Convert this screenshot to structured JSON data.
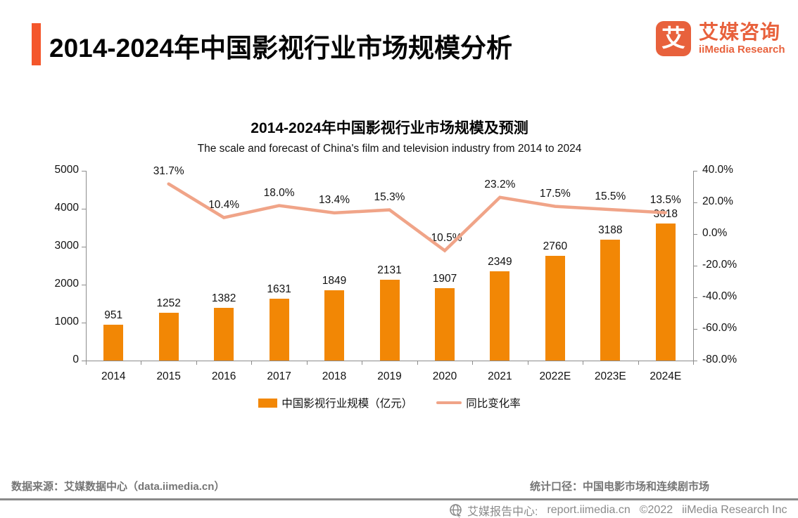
{
  "header": {
    "title": "2014-2024年中国影视行业市场规模分析",
    "logo": {
      "glyph": "艾",
      "brand_cn": "艾媒咨询",
      "brand_en": "iiMedia Research",
      "color": "#E8613C"
    }
  },
  "chart_data": {
    "type": "bar",
    "title": "2014-2024年中国影视行业市场规模及预测",
    "subtitle": "The scale and forecast of China's film and television industry from 2014 to 2024",
    "categories": [
      "2014",
      "2015",
      "2016",
      "2017",
      "2018",
      "2019",
      "2020",
      "2021",
      "2022E",
      "2023E",
      "2024E"
    ],
    "series": [
      {
        "name": "中国影视行业规模（亿元）",
        "type": "bar",
        "color": "#F28705",
        "values": [
          951,
          1252,
          1382,
          1631,
          1849,
          2131,
          1907,
          2349,
          2760,
          3188,
          3618
        ]
      },
      {
        "name": "同比变化率",
        "type": "line",
        "color": "#F0A488",
        "values": [
          null,
          31.7,
          10.4,
          18.0,
          13.4,
          15.3,
          -10.5,
          23.2,
          17.5,
          15.5,
          13.5
        ],
        "point_labels": [
          "",
          "31.7%",
          "10.4%",
          "18.0%",
          "13.4%",
          "15.3%",
          "-10.5%",
          "23.2%",
          "17.5%",
          "15.5%",
          "13.5%"
        ]
      }
    ],
    "left_axis": {
      "min": 0,
      "max": 5000,
      "step": 1000,
      "tick_labels": [
        "5000",
        "4000",
        "3000",
        "2000",
        "1000",
        "0"
      ]
    },
    "right_axis": {
      "min": -80,
      "max": 40,
      "step": 20,
      "tick_labels": [
        "40.0%",
        "20.0%",
        "0.0%",
        "-20.0%",
        "-40.0%",
        "-60.0%",
        "-80.0%"
      ]
    },
    "grid": false,
    "legend_position": "bottom"
  },
  "footer": {
    "source": "数据来源：艾媒数据中心（data.iimedia.cn）",
    "scope": "统计口径：中国电影市场和连续剧市场"
  },
  "bottom_bar": {
    "site_label": "艾媒报告中心:",
    "site_url": "report.iimedia.cn",
    "copyright": "©2022",
    "company": "iiMedia Research Inc"
  }
}
